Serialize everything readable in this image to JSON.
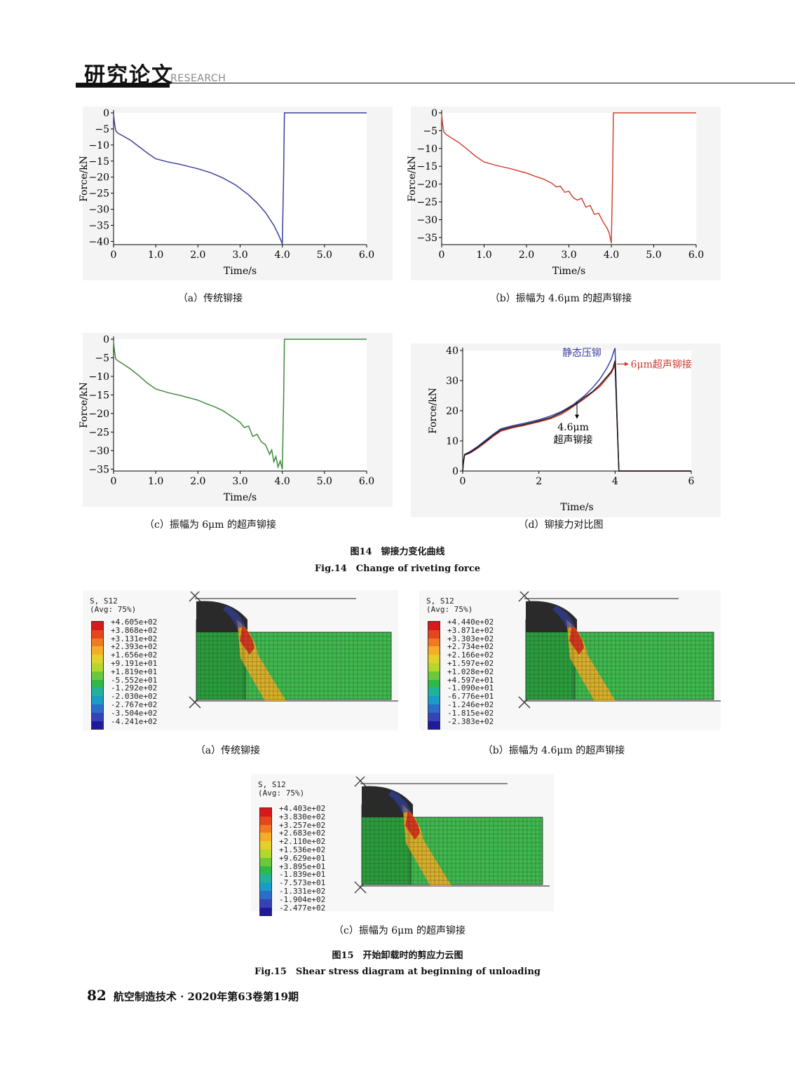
{
  "header": {
    "title": "研究论文",
    "subtitle": "RESEARCH"
  },
  "figure14": {
    "title_cn": "图14　铆接力变化曲线",
    "title_en": "Fig.14　Change of riveting force",
    "captions": [
      "（a）传统铆接",
      "（b）振幅为 4.6μm 的超声铆接",
      "（c）振幅为 6μm 的超声铆接",
      "（d）铆接力对比图"
    ]
  },
  "figure15": {
    "title_cn": "图15　开始卸载时的剪应力云图",
    "title_en": "Fig.15　Shear stress diagram at beginning of unloading",
    "captions": [
      "（a）传统铆接",
      "（b）振幅为 4.6μm 的超声铆接",
      "（c）振幅为 6μm 的超声铆接"
    ],
    "legend_header": [
      "S, S12",
      "(Avg: 75%)"
    ],
    "legends": [
      [
        "+4.605e+02",
        "+3.868e+02",
        "+3.131e+02",
        "+2.393e+02",
        "+1.656e+02",
        "+9.191e+01",
        "+1.819e+01",
        "-5.552e+01",
        "-1.292e+02",
        "-2.030e+02",
        "-2.767e+02",
        "-3.504e+02",
        "-4.241e+02"
      ],
      [
        "+4.440e+02",
        "+3.871e+02",
        "+3.303e+02",
        "+2.734e+02",
        "+2.166e+02",
        "+1.597e+02",
        "+1.028e+02",
        "+4.597e+01",
        "-1.090e+01",
        "-6.776e+01",
        "-1.246e+02",
        "-1.815e+02",
        "-2.383e+02"
      ],
      [
        "+4.403e+02",
        "+3.830e+02",
        "+3.257e+02",
        "+2.683e+02",
        "+2.110e+02",
        "+1.536e+02",
        "+9.629e+01",
        "+3.895e+01",
        "-1.839e+01",
        "-7.573e+01",
        "-1.331e+02",
        "-1.904e+02",
        "-2.477e+02"
      ]
    ],
    "contour_colors": [
      "#d7191c",
      "#e4461e",
      "#f07a22",
      "#f3ad26",
      "#e5cf2a",
      "#b4d72e",
      "#6cc83a",
      "#2fb84a",
      "#22b29a",
      "#1b9bc7",
      "#2b6ec8",
      "#3643b4",
      "#1f1a99"
    ]
  },
  "footer": {
    "page": "82",
    "text": "航空制造技术 · 2020年第63卷第19期"
  },
  "chart_data": [
    {
      "type": "line",
      "panel": "a",
      "xlabel": "Time/s",
      "ylabel": "Force/kN",
      "xticks": [
        "0",
        "1.0",
        "2.0",
        "3.0",
        "4.0",
        "5.0",
        "6.0"
      ],
      "yticks": [
        "0",
        "−5",
        "−10",
        "−15",
        "−20",
        "−25",
        "−30",
        "−35",
        "−40"
      ],
      "xlim": [
        0,
        6
      ],
      "ylim": [
        -41,
        0
      ],
      "color": "#3b3fa0",
      "x": [
        0,
        0.02,
        0.05,
        0.1,
        0.2,
        0.4,
        0.6,
        0.8,
        1.0,
        1.3,
        1.6,
        2.0,
        2.3,
        2.6,
        2.9,
        3.2,
        3.4,
        3.6,
        3.8,
        3.9,
        3.97,
        4.0,
        4.03,
        4.05,
        4.2,
        5.0,
        6.0
      ],
      "y": [
        -0.5,
        -3,
        -5.5,
        -6.3,
        -7,
        -8.5,
        -10.5,
        -12.5,
        -14.3,
        -15.3,
        -16.1,
        -17.4,
        -18.6,
        -20.3,
        -22.5,
        -25.5,
        -28,
        -31,
        -35,
        -37.6,
        -39.8,
        -40.8,
        -20,
        0,
        0,
        0,
        0
      ]
    },
    {
      "type": "line",
      "panel": "b",
      "xlabel": "Time/s",
      "ylabel": "Force/kN",
      "xticks": [
        "0",
        "1.0",
        "2.0",
        "3.0",
        "4.0",
        "5.0",
        "6.0"
      ],
      "yticks": [
        "0",
        "−5",
        "−10",
        "−15",
        "−20",
        "−25",
        "−30",
        "−35"
      ],
      "xlim": [
        0,
        6
      ],
      "ylim": [
        -37,
        0
      ],
      "color": "#d04434",
      "x": [
        0,
        0.02,
        0.05,
        0.1,
        0.2,
        0.4,
        0.6,
        0.8,
        1.0,
        1.3,
        1.6,
        2.0,
        2.2,
        2.4,
        2.6,
        2.7,
        2.8,
        2.9,
        3.0,
        3.1,
        3.2,
        3.3,
        3.4,
        3.5,
        3.6,
        3.7,
        3.8,
        3.9,
        3.95,
        4.0,
        4.03,
        4.05,
        4.2,
        5.0,
        6.0
      ],
      "y": [
        -0.5,
        -3,
        -5.3,
        -6,
        -6.8,
        -8.3,
        -10.2,
        -12.2,
        -13.8,
        -14.8,
        -15.6,
        -16.9,
        -17.8,
        -18.6,
        -19.8,
        -20.8,
        -20.6,
        -22.3,
        -22,
        -23.8,
        -24.5,
        -24.0,
        -26.5,
        -26.0,
        -28.5,
        -28.2,
        -30.5,
        -32.4,
        -33.8,
        -36.6,
        -18,
        0,
        0,
        0,
        0
      ]
    },
    {
      "type": "line",
      "panel": "c",
      "xlabel": "Time/s",
      "ylabel": "Force/kN",
      "xticks": [
        "0",
        "1.0",
        "2.0",
        "3.0",
        "4.0",
        "5.0",
        "6.0"
      ],
      "yticks": [
        "0",
        "−5",
        "−10",
        "−15",
        "−20",
        "−25",
        "−30",
        "−35"
      ],
      "xlim": [
        0,
        6
      ],
      "ylim": [
        -35.5,
        0
      ],
      "color": "#3f8a3a",
      "x": [
        0,
        0.02,
        0.05,
        0.1,
        0.2,
        0.4,
        0.6,
        0.8,
        1.0,
        1.3,
        1.6,
        2.0,
        2.2,
        2.4,
        2.6,
        2.8,
        2.9,
        3.0,
        3.1,
        3.2,
        3.3,
        3.4,
        3.5,
        3.6,
        3.7,
        3.75,
        3.8,
        3.85,
        3.9,
        3.95,
        4.0,
        4.03,
        4.05,
        4.2,
        5.0,
        6.0
      ],
      "y": [
        -0.5,
        -3,
        -5.3,
        -5.8,
        -6.5,
        -8.0,
        -9.8,
        -11.8,
        -13.4,
        -14.4,
        -15.2,
        -16.4,
        -17.4,
        -18.2,
        -19.3,
        -20.8,
        -21.6,
        -22.4,
        -23.8,
        -23.4,
        -26.2,
        -25.6,
        -27.6,
        -28.4,
        -31.0,
        -29.8,
        -33.0,
        -31.6,
        -34.4,
        -32.8,
        -35.0,
        -17,
        0,
        0,
        0,
        0
      ]
    },
    {
      "type": "line",
      "panel": "d",
      "xlabel": "Time/s",
      "ylabel": "Force/kN",
      "xticks": [
        "0",
        "2",
        "4",
        "6"
      ],
      "yticks": [
        "0",
        "10",
        "20",
        "30",
        "40"
      ],
      "xlim": [
        0,
        6
      ],
      "ylim": [
        0,
        40
      ],
      "series": [
        {
          "name": "静态压铆",
          "color": "#3a3f9e",
          "x": [
            0,
            0.02,
            0.05,
            0.2,
            0.4,
            0.6,
            0.8,
            1.0,
            1.3,
            1.6,
            2.0,
            2.3,
            2.6,
            2.9,
            3.2,
            3.4,
            3.6,
            3.8,
            3.9,
            3.97,
            4.0,
            4.05,
            4.1,
            5.0,
            6.0
          ],
          "y": [
            0,
            3,
            5.5,
            6.5,
            8.2,
            10.2,
            12.2,
            14.0,
            15.0,
            15.8,
            17.0,
            18.2,
            19.8,
            22,
            25,
            27.5,
            30.5,
            34.5,
            37,
            39.8,
            40.8,
            20,
            0,
            0,
            0
          ]
        },
        {
          "name": "6μm超声铆接",
          "color": "#d0392e",
          "x": [
            0,
            0.02,
            0.05,
            0.2,
            0.4,
            0.6,
            0.8,
            1.0,
            1.3,
            1.6,
            2.0,
            2.3,
            2.6,
            2.8,
            3.0,
            3.2,
            3.4,
            3.6,
            3.8,
            3.9,
            3.95,
            4.0,
            4.05,
            4.1,
            5.0,
            6.0
          ],
          "y": [
            0,
            3,
            5.2,
            6.0,
            7.6,
            9.5,
            11.5,
            13.2,
            14.3,
            15.1,
            16.3,
            17.3,
            18.9,
            20.5,
            22.3,
            24,
            26,
            28,
            31,
            32.5,
            33.8,
            35.2,
            18,
            0,
            0,
            0
          ]
        },
        {
          "name": "4.6μm超声铆接",
          "color": "#1a1a1a",
          "x": [
            0,
            0.02,
            0.05,
            0.2,
            0.4,
            0.6,
            0.8,
            1.0,
            1.3,
            1.6,
            2.0,
            2.3,
            2.6,
            2.8,
            3.0,
            3.2,
            3.4,
            3.6,
            3.8,
            3.9,
            3.95,
            4.0,
            4.05,
            4.1,
            5.0,
            6.0
          ],
          "y": [
            0,
            3,
            5.4,
            6.2,
            7.9,
            9.8,
            11.8,
            13.6,
            14.6,
            15.4,
            16.6,
            17.7,
            19.4,
            20.9,
            22.5,
            24.5,
            26.2,
            28.6,
            31.5,
            33,
            34.2,
            36.6,
            18,
            0,
            0,
            0
          ]
        }
      ],
      "annotations": [
        "静态压铆",
        "6μm超声铆接",
        "4.6μm",
        "超声铆接"
      ]
    }
  ]
}
